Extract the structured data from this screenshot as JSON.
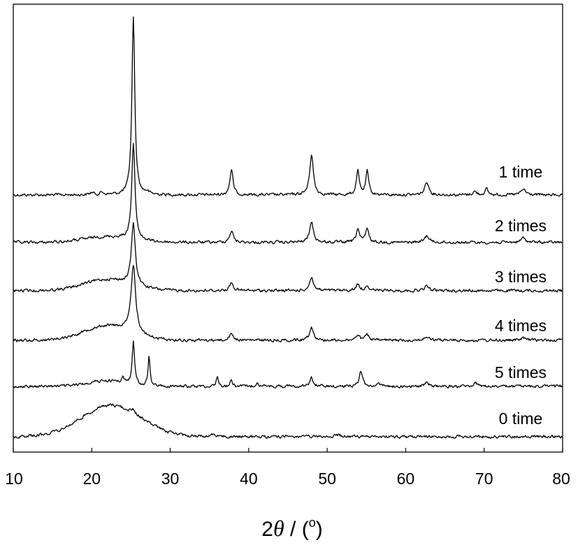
{
  "chart_data": {
    "type": "line",
    "title": "",
    "xlabel": {
      "prefix": "2",
      "symbol": "θ",
      "suffix": " / (",
      "unit_sup": "o",
      "close": ")"
    },
    "ylabel": "",
    "xlim": [
      10,
      80
    ],
    "xticks": [
      10,
      20,
      30,
      40,
      50,
      60,
      70,
      80
    ],
    "y_ticks_shown": false,
    "grid": false,
    "legend": "none",
    "line_color": "#000000",
    "series": [
      {
        "name": "1 time",
        "baseline": 5,
        "peaks": [
          [
            25.3,
            1.6,
            0.22
          ],
          [
            37.8,
            0.22,
            0.25
          ],
          [
            48.0,
            0.36,
            0.28
          ],
          [
            53.9,
            0.21,
            0.22
          ],
          [
            55.1,
            0.21,
            0.22
          ],
          [
            62.7,
            0.12,
            0.3
          ],
          [
            68.8,
            0.03,
            0.3
          ],
          [
            70.3,
            0.05,
            0.25
          ],
          [
            75.0,
            0.05,
            0.35
          ],
          [
            20.0,
            0.02,
            0.3
          ],
          [
            21.3,
            0.02,
            0.3
          ],
          [
            27.0,
            0.02,
            0.3
          ]
        ],
        "hump": [
          0,
          22,
          3
        ]
      },
      {
        "name": "2 times",
        "baseline": 4,
        "peaks": [
          [
            25.3,
            0.85,
            0.25
          ],
          [
            37.8,
            0.1,
            0.3
          ],
          [
            48.0,
            0.18,
            0.3
          ],
          [
            53.9,
            0.12,
            0.25
          ],
          [
            55.1,
            0.12,
            0.25
          ],
          [
            62.7,
            0.06,
            0.35
          ],
          [
            75.0,
            0.04,
            0.35
          ]
        ],
        "hump": [
          0.05,
          22,
          3
        ]
      },
      {
        "name": "3 times",
        "baseline": 3,
        "peaks": [
          [
            25.3,
            0.55,
            0.3
          ],
          [
            37.8,
            0.07,
            0.3
          ],
          [
            48.0,
            0.12,
            0.3
          ],
          [
            53.9,
            0.06,
            0.25
          ],
          [
            55.1,
            0.05,
            0.25
          ],
          [
            62.7,
            0.04,
            0.35
          ]
        ],
        "hump": [
          0.1,
          22,
          3
        ]
      },
      {
        "name": "4 times",
        "baseline": 2,
        "peaks": [
          [
            25.3,
            0.6,
            0.35
          ],
          [
            37.8,
            0.06,
            0.3
          ],
          [
            48.0,
            0.12,
            0.3
          ],
          [
            53.9,
            0.05,
            0.25
          ],
          [
            55.1,
            0.05,
            0.25
          ],
          [
            62.7,
            0.03,
            0.35
          ],
          [
            75.0,
            0.02,
            0.35
          ]
        ],
        "hump": [
          0.13,
          22,
          3
        ]
      },
      {
        "name": "5 times",
        "baseline": 1,
        "peaks": [
          [
            25.3,
            0.38,
            0.18
          ],
          [
            27.3,
            0.26,
            0.15
          ],
          [
            36.0,
            0.08,
            0.18
          ],
          [
            37.8,
            0.05,
            0.2
          ],
          [
            41.1,
            0.04,
            0.2
          ],
          [
            48.0,
            0.08,
            0.25
          ],
          [
            54.3,
            0.14,
            0.25
          ],
          [
            56.5,
            0.04,
            0.2
          ],
          [
            62.7,
            0.03,
            0.3
          ],
          [
            68.9,
            0.03,
            0.3
          ],
          [
            24.0,
            0.04,
            0.2
          ]
        ],
        "hump": [
          0.05,
          22,
          2.5
        ]
      },
      {
        "name": "0 time",
        "baseline": 0,
        "peaks": [
          [
            25.3,
            0.03,
            0.3
          ],
          [
            35.6,
            0.03,
            0.3
          ],
          [
            51.5,
            0.02,
            0.3
          ]
        ],
        "hump": [
          0.28,
          22.5,
          3.8
        ]
      }
    ]
  }
}
